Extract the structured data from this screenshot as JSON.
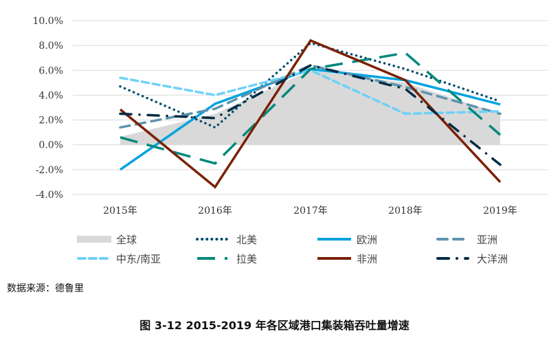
{
  "chart_data": {
    "type": "line",
    "title": "",
    "xlabel": "",
    "ylabel": "",
    "categories": [
      "2015年",
      "2016年",
      "2017年",
      "2018年",
      "2019年"
    ],
    "ylim": [
      -4,
      10
    ],
    "yticks": [
      "-4.0%",
      "-2.0%",
      "0.0%",
      "2.0%",
      "4.0%",
      "6.0%",
      "8.0%",
      "10.0%"
    ],
    "ytick_values": [
      -4,
      -2,
      0,
      2,
      4,
      6,
      8,
      10
    ],
    "grid": true,
    "legend_position": "bottom",
    "series": [
      {
        "name": "全球",
        "style": "area",
        "color": "#D9D9D9",
        "values": [
          0.65,
          2.5,
          6.0,
          5.0,
          2.5
        ]
      },
      {
        "name": "北美",
        "style": "dotted",
        "color": "#004C6D",
        "values": [
          4.7,
          1.4,
          8.2,
          6.1,
          3.5
        ]
      },
      {
        "name": "欧洲",
        "style": "solid",
        "color": "#00A3E0",
        "values": [
          -2.0,
          3.3,
          6.1,
          5.2,
          3.25
        ]
      },
      {
        "name": "亚洲",
        "style": "dashed",
        "color": "#5E93AE",
        "values": [
          1.4,
          2.9,
          6.4,
          4.65,
          2.5
        ]
      },
      {
        "name": "中东/南亚",
        "style": "short-dash",
        "color": "#6DD1F7",
        "values": [
          5.4,
          4.0,
          6.0,
          2.5,
          2.7
        ]
      },
      {
        "name": "拉美",
        "style": "long-dash",
        "color": "#00897B",
        "values": [
          0.6,
          -1.5,
          6.1,
          7.4,
          0.8
        ]
      },
      {
        "name": "非洲",
        "style": "solid",
        "color": "#7B2106",
        "values": [
          2.85,
          -3.4,
          8.4,
          5.2,
          -3.0
        ]
      },
      {
        "name": "大洋洲",
        "style": "dash-dot",
        "color": "#002B45",
        "values": [
          2.5,
          2.15,
          6.4,
          4.5,
          -1.6
        ]
      }
    ]
  },
  "source": "数据来源：德鲁里",
  "caption": "图 3-12   2015-2019 年各区域港口集装箱吞吐量增速"
}
